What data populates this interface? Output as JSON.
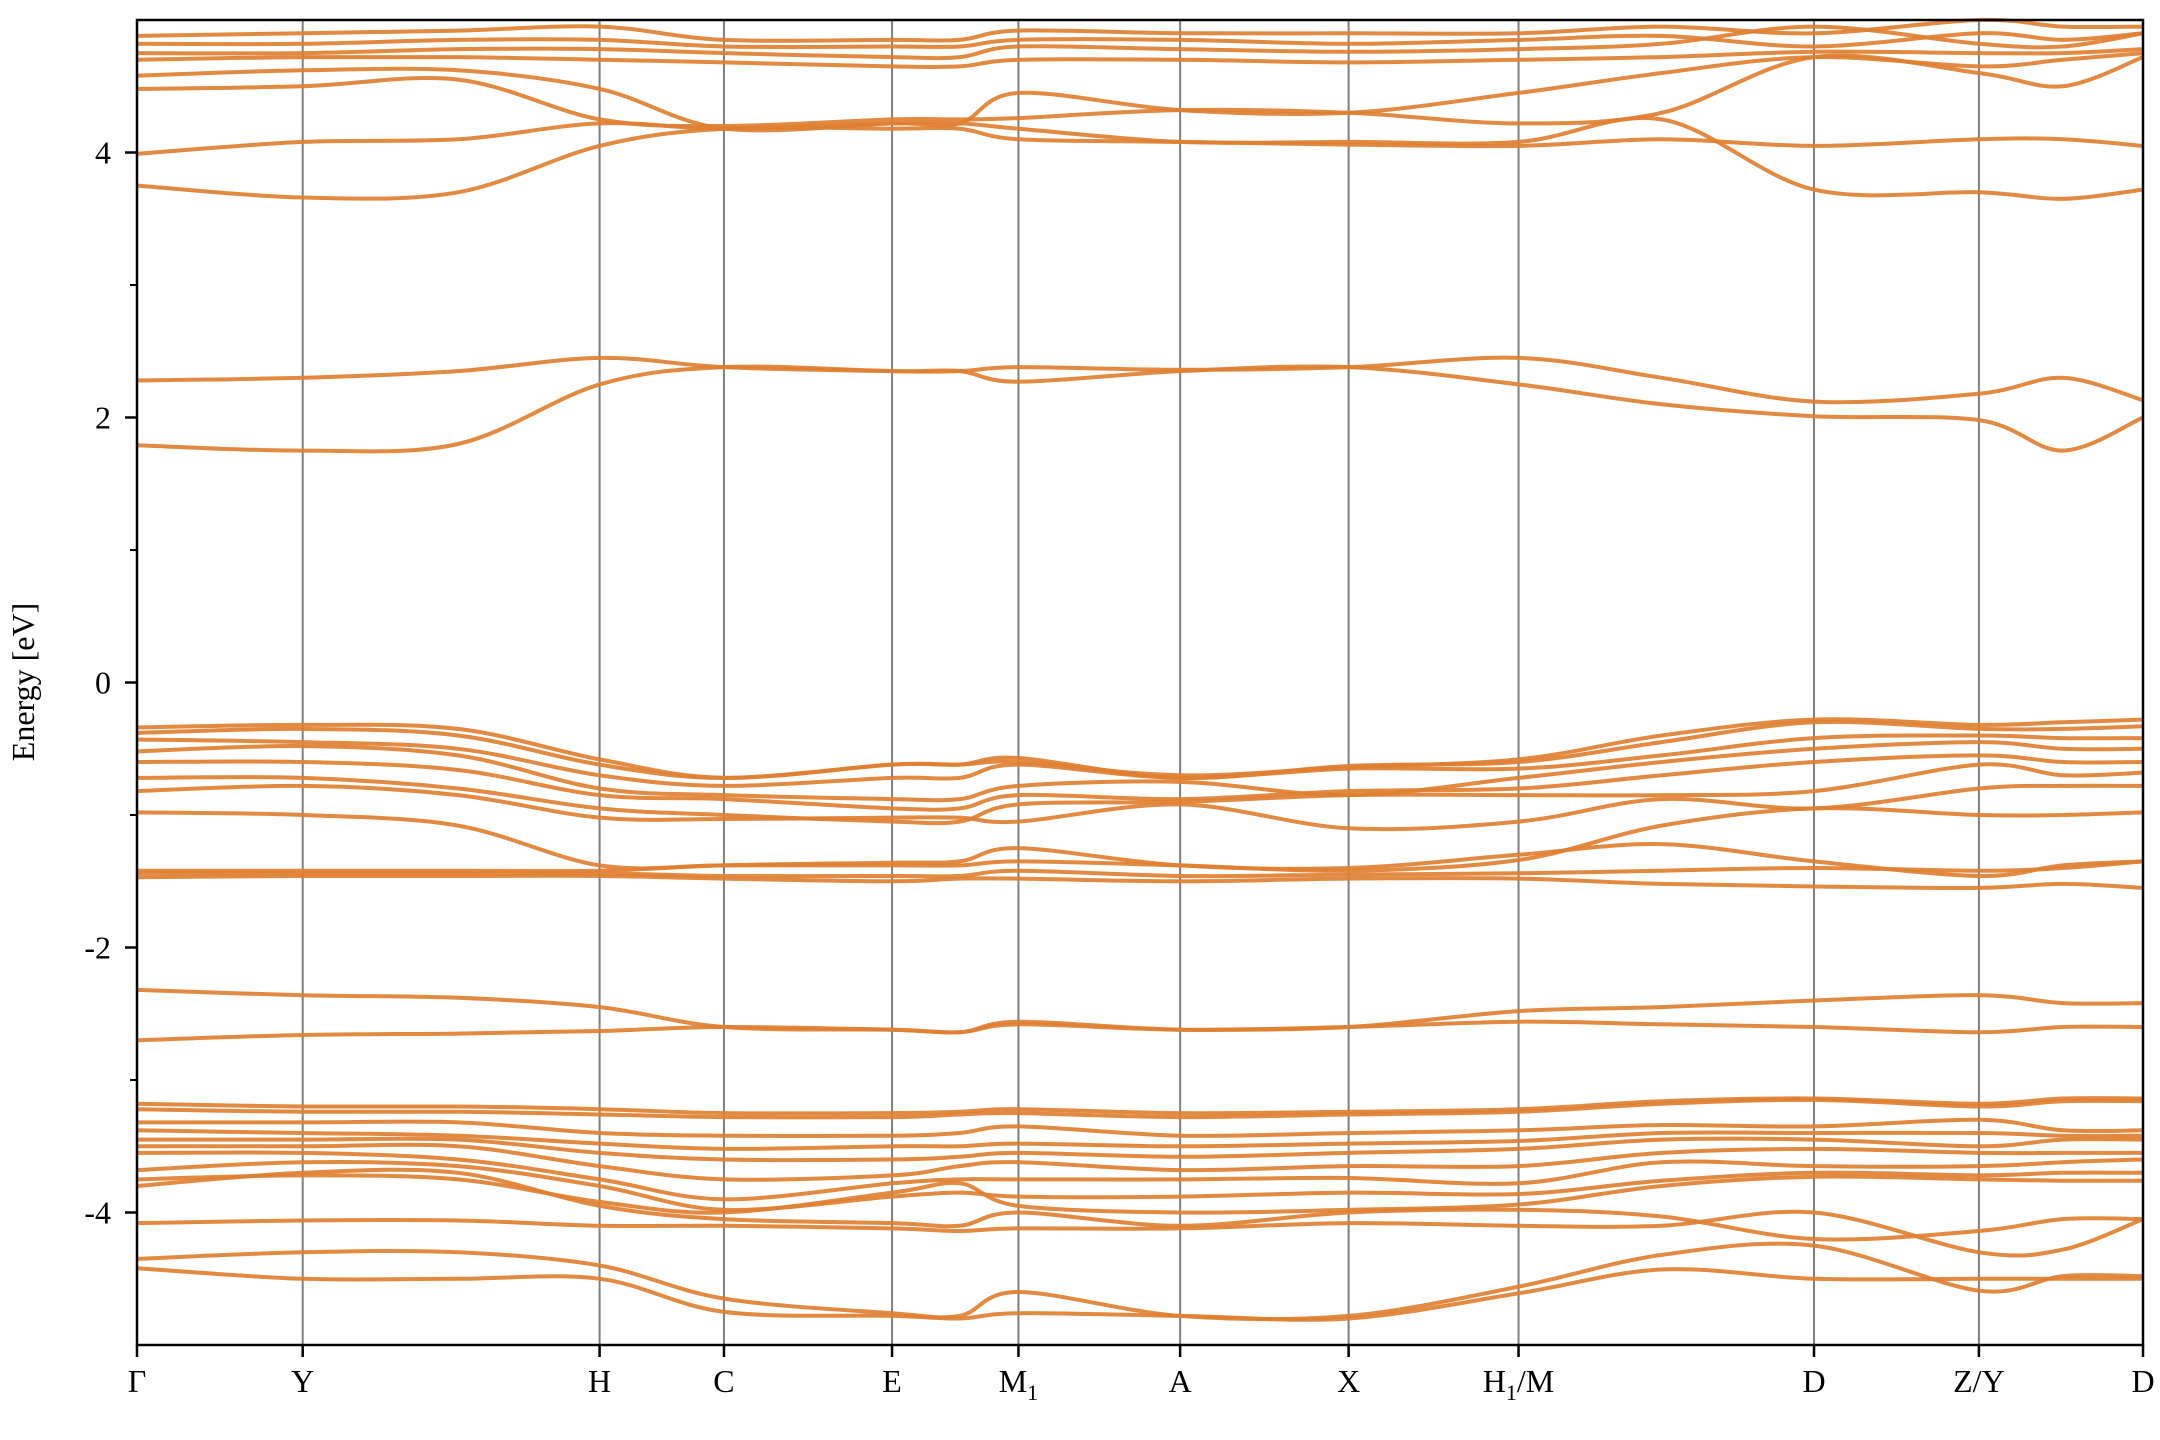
{
  "chart_data": {
    "type": "line",
    "title": "",
    "xlabel": "",
    "ylabel": "Energy [eV]",
    "ylim": [
      -5,
      5
    ],
    "y_ticks": [
      -4,
      -2,
      0,
      2,
      4
    ],
    "y_tick_labels": [
      "-4",
      "-2",
      "0",
      "2",
      "4"
    ],
    "y_minor_ticks": [
      -3,
      -1,
      1,
      3
    ],
    "k_points": [
      {
        "label": "Γ",
        "sub": "",
        "x": 0.0
      },
      {
        "label": "Y",
        "sub": "",
        "x": 0.0826
      },
      {
        "label": "H",
        "sub": "",
        "x": 0.2306
      },
      {
        "label": "C",
        "sub": "",
        "x": 0.2926
      },
      {
        "label": "E",
        "sub": "",
        "x": 0.3764
      },
      {
        "label": "M",
        "sub": "1",
        "x": 0.4394
      },
      {
        "label": "A",
        "sub": "",
        "x": 0.52
      },
      {
        "label": "X",
        "sub": "",
        "x": 0.604
      },
      {
        "label": "H",
        "sub": "1",
        "suffix": "/M",
        "x": 0.6887
      },
      {
        "label": "D",
        "sub": "",
        "x": 0.836
      },
      {
        "label": "Z/Y",
        "sub": "",
        "x": 0.9182
      },
      {
        "label": "D",
        "sub": "",
        "x": 1.0
      }
    ],
    "x_range": [
      0,
      1
    ],
    "grid": "vertical lines at high-symmetry points",
    "legend": "none",
    "line_color": "#e07f32",
    "vline_color": "#7f7f7f",
    "series": [
      {
        "values": [
          -4.42,
          -4.5,
          -4.5,
          -4.5,
          -4.75,
          -4.78,
          -4.8,
          -4.76,
          -4.78,
          -4.8,
          -4.61,
          -4.43,
          -4.5,
          -4.5,
          -4.5,
          -4.5
        ]
      },
      {
        "values": [
          -4.35,
          -4.3,
          -4.3,
          -4.4,
          -4.65,
          -4.76,
          -4.78,
          -4.6,
          -4.78,
          -4.78,
          -4.56,
          -4.32,
          -4.25,
          -4.59,
          -4.48,
          -4.48
        ]
      },
      {
        "values": [
          -4.08,
          -4.06,
          -4.06,
          -4.1,
          -4.1,
          -4.12,
          -4.14,
          -4.12,
          -4.12,
          -4.08,
          -4.1,
          -4.1,
          -4.0,
          -4.3,
          -4.28,
          -4.05
        ]
      },
      {
        "values": [
          -3.8,
          -3.7,
          -3.7,
          -3.95,
          -4.05,
          -4.08,
          -4.1,
          -4.0,
          -4.1,
          -4.0,
          -3.98,
          -4.03,
          -4.2,
          -4.14,
          -4.05,
          -4.05
        ]
      },
      {
        "values": [
          -3.75,
          -3.72,
          -3.75,
          -3.92,
          -4.0,
          -3.85,
          -3.78,
          -3.95,
          -4.0,
          -3.98,
          -3.94,
          -3.8,
          -3.73,
          -3.75,
          -3.76,
          -3.76
        ]
      },
      {
        "values": [
          -3.68,
          -3.62,
          -3.65,
          -3.8,
          -3.98,
          -3.88,
          -3.85,
          -3.88,
          -3.88,
          -3.85,
          -3.86,
          -3.76,
          -3.7,
          -3.72,
          -3.7,
          -3.7
        ]
      },
      {
        "values": [
          -3.55,
          -3.55,
          -3.6,
          -3.75,
          -3.9,
          -3.78,
          -3.75,
          -3.75,
          -3.75,
          -3.74,
          -3.78,
          -3.62,
          -3.65,
          -3.65,
          -3.62,
          -3.6
        ]
      },
      {
        "values": [
          -3.5,
          -3.5,
          -3.5,
          -3.65,
          -3.75,
          -3.72,
          -3.65,
          -3.62,
          -3.68,
          -3.65,
          -3.65,
          -3.55,
          -3.52,
          -3.55,
          -3.55,
          -3.55
        ]
      },
      {
        "values": [
          -3.45,
          -3.45,
          -3.45,
          -3.55,
          -3.6,
          -3.6,
          -3.58,
          -3.55,
          -3.58,
          -3.55,
          -3.52,
          -3.45,
          -3.45,
          -3.5,
          -3.45,
          -3.45
        ]
      },
      {
        "values": [
          -3.38,
          -3.4,
          -3.42,
          -3.48,
          -3.52,
          -3.5,
          -3.5,
          -3.48,
          -3.5,
          -3.48,
          -3.46,
          -3.4,
          -3.4,
          -3.4,
          -3.42,
          -3.42
        ]
      },
      {
        "values": [
          -3.32,
          -3.32,
          -3.32,
          -3.4,
          -3.42,
          -3.42,
          -3.4,
          -3.35,
          -3.42,
          -3.4,
          -3.38,
          -3.34,
          -3.35,
          -3.3,
          -3.38,
          -3.38
        ]
      },
      {
        "values": [
          -3.22,
          -3.24,
          -3.24,
          -3.26,
          -3.28,
          -3.28,
          -3.26,
          -3.25,
          -3.28,
          -3.26,
          -3.24,
          -3.18,
          -3.15,
          -3.2,
          -3.16,
          -3.16
        ]
      },
      {
        "values": [
          -3.18,
          -3.2,
          -3.2,
          -3.22,
          -3.25,
          -3.25,
          -3.24,
          -3.22,
          -3.25,
          -3.24,
          -3.22,
          -3.16,
          -3.14,
          -3.18,
          -3.14,
          -3.14
        ]
      },
      {
        "values": [
          -2.7,
          -2.66,
          -2.65,
          -2.63,
          -2.6,
          -2.62,
          -2.64,
          -2.56,
          -2.62,
          -2.6,
          -2.56,
          -2.58,
          -2.6,
          -2.64,
          -2.6,
          -2.6
        ]
      },
      {
        "values": [
          -2.32,
          -2.36,
          -2.38,
          -2.45,
          -2.6,
          -2.62,
          -2.64,
          -2.58,
          -2.62,
          -2.6,
          -2.48,
          -2.45,
          -2.4,
          -2.36,
          -2.42,
          -2.42
        ]
      },
      {
        "values": [
          -1.47,
          -1.46,
          -1.46,
          -1.46,
          -1.48,
          -1.5,
          -1.48,
          -1.48,
          -1.5,
          -1.48,
          -1.48,
          -1.52,
          -1.54,
          -1.55,
          -1.52,
          -1.55
        ]
      },
      {
        "values": [
          -1.44,
          -1.44,
          -1.44,
          -1.44,
          -1.46,
          -1.46,
          -1.46,
          -1.42,
          -1.46,
          -1.45,
          -1.44,
          -1.42,
          -1.4,
          -1.42,
          -1.4,
          -1.35
        ]
      },
      {
        "values": [
          -1.42,
          -1.42,
          -1.42,
          -1.42,
          -1.38,
          -1.36,
          -1.35,
          -1.25,
          -1.38,
          -1.4,
          -1.3,
          -1.22,
          -1.35,
          -1.46,
          -1.38,
          -1.35
        ]
      },
      {
        "values": [
          -0.98,
          -1.0,
          -1.08,
          -1.38,
          -1.38,
          -1.38,
          -1.38,
          -1.35,
          -1.38,
          -1.42,
          -1.34,
          -1.08,
          -0.95,
          -1.0,
          -1.0,
          -0.98
        ]
      },
      {
        "values": [
          -0.82,
          -0.78,
          -0.85,
          -1.02,
          -1.03,
          -1.02,
          -1.02,
          -1.05,
          -0.92,
          -1.1,
          -1.05,
          -0.88,
          -0.95,
          -0.8,
          -0.78,
          -0.78
        ]
      },
      {
        "values": [
          -0.72,
          -0.72,
          -0.8,
          -0.95,
          -1.0,
          -1.05,
          -1.05,
          -0.92,
          -0.9,
          -0.85,
          -0.85,
          -0.85,
          -0.82,
          -0.62,
          -0.7,
          -0.68
        ]
      },
      {
        "values": [
          -0.6,
          -0.6,
          -0.66,
          -0.85,
          -0.88,
          -0.95,
          -0.95,
          -0.85,
          -0.88,
          -0.82,
          -0.8,
          -0.7,
          -0.6,
          -0.55,
          -0.6,
          -0.6
        ]
      },
      {
        "values": [
          -0.52,
          -0.48,
          -0.55,
          -0.8,
          -0.85,
          -0.88,
          -0.88,
          -0.78,
          -0.75,
          -0.85,
          -0.72,
          -0.6,
          -0.5,
          -0.45,
          -0.5,
          -0.5
        ]
      },
      {
        "values": [
          -0.43,
          -0.45,
          -0.5,
          -0.7,
          -0.78,
          -0.72,
          -0.72,
          -0.62,
          -0.72,
          -0.65,
          -0.65,
          -0.55,
          -0.42,
          -0.4,
          -0.42,
          -0.42
        ]
      },
      {
        "values": [
          -0.38,
          -0.35,
          -0.4,
          -0.62,
          -0.72,
          -0.62,
          -0.62,
          -0.57,
          -0.72,
          -0.63,
          -0.6,
          -0.45,
          -0.3,
          -0.35,
          -0.35,
          -0.33
        ]
      },
      {
        "values": [
          -0.34,
          -0.32,
          -0.35,
          -0.58,
          -0.72,
          -0.62,
          -0.62,
          -0.6,
          -0.7,
          -0.64,
          -0.58,
          -0.4,
          -0.28,
          -0.32,
          -0.3,
          -0.28
        ]
      },
      {
        "values": [
          1.79,
          1.75,
          1.8,
          2.25,
          2.38,
          2.35,
          2.35,
          2.27,
          2.35,
          2.38,
          2.25,
          2.1,
          2.01,
          1.98,
          1.75,
          2.0
        ]
      },
      {
        "values": [
          2.28,
          2.3,
          2.35,
          2.45,
          2.38,
          2.35,
          2.35,
          2.38,
          2.36,
          2.38,
          2.45,
          2.3,
          2.12,
          2.18,
          2.3,
          2.13
        ]
      },
      {
        "values": [
          3.75,
          3.66,
          3.7,
          4.05,
          4.18,
          4.18,
          4.18,
          4.1,
          4.08,
          4.06,
          4.05,
          4.1,
          4.05,
          4.1,
          4.1,
          4.05
        ]
      },
      {
        "values": [
          3.99,
          4.08,
          4.1,
          4.22,
          4.18,
          4.22,
          4.22,
          4.18,
          4.08,
          4.08,
          4.08,
          4.25,
          3.72,
          3.7,
          3.65,
          3.72
        ]
      },
      {
        "values": [
          4.48,
          4.5,
          4.55,
          4.25,
          4.2,
          4.25,
          4.25,
          4.26,
          4.32,
          4.3,
          4.22,
          4.3,
          4.72,
          4.6,
          4.5,
          4.72
        ]
      },
      {
        "values": [
          4.58,
          4.62,
          4.62,
          4.48,
          4.18,
          4.22,
          4.22,
          4.45,
          4.32,
          4.3,
          4.45,
          4.6,
          4.72,
          4.65,
          4.7,
          4.75
        ]
      },
      {
        "values": [
          4.7,
          4.72,
          4.72,
          4.7,
          4.68,
          4.65,
          4.65,
          4.7,
          4.7,
          4.68,
          4.7,
          4.72,
          4.76,
          4.75,
          4.75,
          4.78
        ]
      },
      {
        "values": [
          4.75,
          4.75,
          4.78,
          4.78,
          4.75,
          4.72,
          4.72,
          4.8,
          4.78,
          4.76,
          4.78,
          4.82,
          4.95,
          4.82,
          4.8,
          4.9
        ]
      },
      {
        "values": [
          4.82,
          4.82,
          4.85,
          4.85,
          4.8,
          4.8,
          4.8,
          4.85,
          4.85,
          4.82,
          4.85,
          4.88,
          4.8,
          4.9,
          4.85,
          4.9
        ]
      },
      {
        "values": [
          4.88,
          4.9,
          4.92,
          4.95,
          4.85,
          4.85,
          4.85,
          4.92,
          4.9,
          4.9,
          4.9,
          4.95,
          4.9,
          5.0,
          4.95,
          4.95
        ]
      }
    ],
    "series_x": [
      0.0,
      0.0826,
      0.16,
      0.2306,
      0.2926,
      0.3764,
      0.41,
      0.4394,
      0.52,
      0.604,
      0.6887,
      0.76,
      0.836,
      0.9182,
      0.96,
      1.0
    ]
  }
}
